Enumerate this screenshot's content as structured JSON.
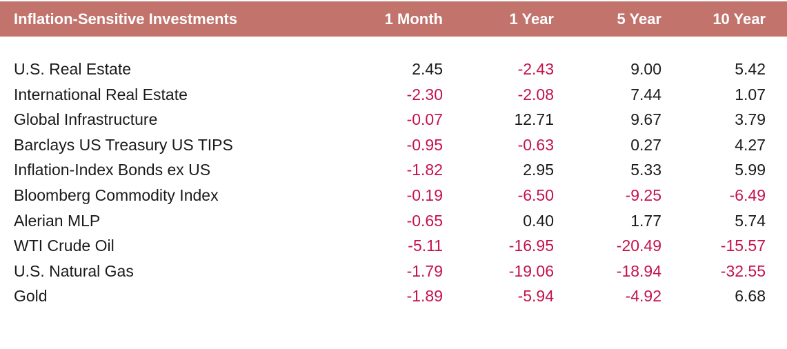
{
  "colors": {
    "header_bg": "#c1736c",
    "header_text": "#ffffff",
    "positive_text": "#1a1a1a",
    "negative_text": "#c4124a"
  },
  "header": {
    "name": "Inflation-Sensitive Investments",
    "col_1m": "1 Month",
    "col_1y": "1 Year",
    "col_5y": "5 Year",
    "col_10y": "10 Year"
  },
  "rows": [
    {
      "name": "U.S. Real Estate",
      "m1": "2.45",
      "y1": "-2.43",
      "y5": "9.00",
      "y10": "5.42"
    },
    {
      "name": "International Real Estate",
      "m1": "-2.30",
      "y1": "-2.08",
      "y5": "7.44",
      "y10": "1.07"
    },
    {
      "name": "Global Infrastructure",
      "m1": "-0.07",
      "y1": "12.71",
      "y5": "9.67",
      "y10": "3.79"
    },
    {
      "name": "Barclays US Treasury US TIPS",
      "m1": "-0.95",
      "y1": "-0.63",
      "y5": "0.27",
      "y10": "4.27"
    },
    {
      "name": "Inflation-Index Bonds ex US",
      "m1": "-1.82",
      "y1": "2.95",
      "y5": "5.33",
      "y10": "5.99"
    },
    {
      "name": "Bloomberg Commodity Index",
      "m1": "-0.19",
      "y1": "-6.50",
      "y5": "-9.25",
      "y10": "-6.49"
    },
    {
      "name": "Alerian MLP",
      "m1": "-0.65",
      "y1": "0.40",
      "y5": "1.77",
      "y10": "5.74"
    },
    {
      "name": "WTI Crude Oil",
      "m1": "-5.11",
      "y1": "-16.95",
      "y5": "-20.49",
      "y10": "-15.57"
    },
    {
      "name": "U.S. Natural Gas",
      "m1": "-1.79",
      "y1": "-19.06",
      "y5": "-18.94",
      "y10": "-32.55"
    },
    {
      "name": "Gold",
      "m1": "-1.89",
      "y1": "-5.94",
      "y5": "-4.92",
      "y10": "6.68"
    }
  ]
}
